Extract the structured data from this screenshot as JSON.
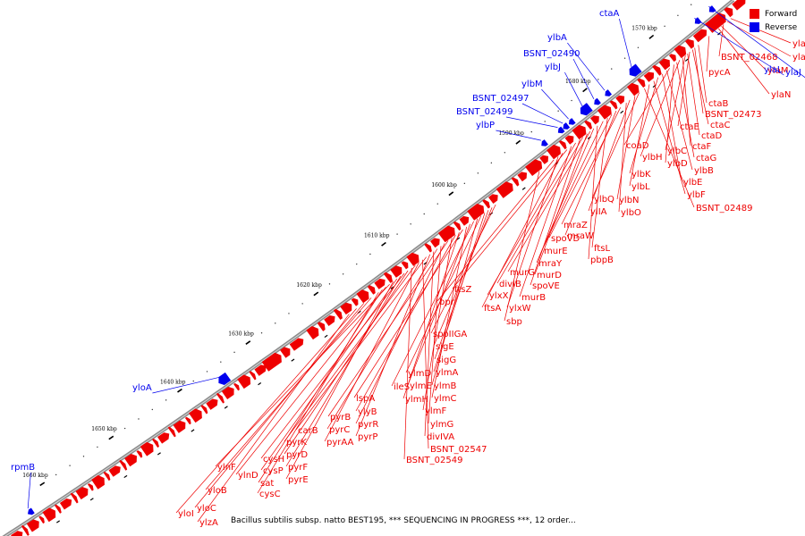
{
  "caption": "Bacillus subtilis subsp. natto BEST195, *** SEQUENCING IN PROGRESS ***, 12 order...",
  "legend": [
    {
      "label": "Forward",
      "color": "#ee0000"
    },
    {
      "label": "Reverse",
      "color": "#0000ee"
    }
  ],
  "colors": {
    "forward": "#ee0000",
    "reverse": "#0000ee",
    "backbone": "#8c8c8c"
  },
  "kbp_labels": [
    "1570 kbp",
    "1580 kbp",
    "1590 kbp",
    "1600 kbp",
    "1610 kbp",
    "1620 kbp",
    "1630 kbp",
    "1640 kbp",
    "1650 kbp",
    "1660 kbp"
  ],
  "reverse_genes": [
    "rpmB",
    "yloA",
    "ylbP",
    "BSNT_02499",
    "BSNT_02497",
    "ylbM",
    "ylbJ",
    "BSNT_02490",
    "ylbA",
    "ctaA",
    "ylaL",
    "ylaJ"
  ],
  "forward_genes": [
    "ylaG",
    "ylaH",
    "BSNT_02468",
    "ylaM",
    "ylaN",
    "pycA",
    "ctaB",
    "BSNT_02473",
    "ctaC",
    "ctaE",
    "ctaD",
    "ylbC",
    "ctaF",
    "ylbH",
    "ctaG",
    "ylbD",
    "coaD",
    "ylbB",
    "ylbE",
    "ylbK",
    "ylbF",
    "ylbL",
    "BSNT_02489",
    "ylbQ",
    "ylbN",
    "ylIA",
    "ylbO",
    "mraZ",
    "mraW",
    "spoVD",
    "ftsL",
    "murE",
    "pbpB",
    "mraY",
    "murG",
    "murD",
    "divIB",
    "spoVE",
    "ylxX",
    "murB",
    "ftsZ",
    "ftsA",
    "ylxW",
    "bpr",
    "sbp",
    "spoIIGA",
    "sigE",
    "sigG",
    "ylmA",
    "ylmD",
    "ylmB",
    "ileS",
    "ylmE",
    "ylmC",
    "lspA",
    "ylmH",
    "ylyB",
    "ylmF",
    "pyrB",
    "pyrR",
    "ylmG",
    "pyrC",
    "divIVA",
    "pyrP",
    "carB",
    "BSNT_02547",
    "pyrAA",
    "pyrK",
    "BSNT_02549",
    "pyrD",
    "cysH",
    "pyrF",
    "cysP",
    "pyrE",
    "ylnF",
    "ylnD",
    "sat",
    "cysC",
    "yloB",
    "yloC",
    "yloI",
    "ylzA"
  ]
}
